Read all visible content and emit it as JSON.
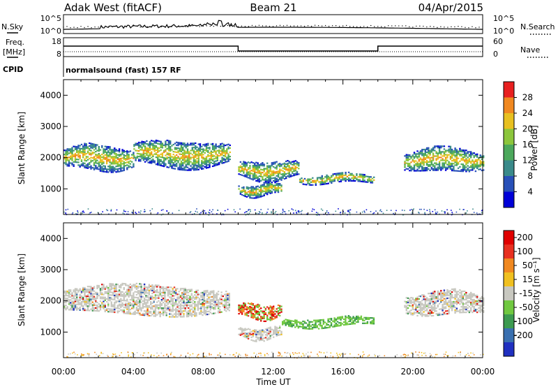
{
  "header": {
    "station": "Adak West (fitACF)",
    "beam": "Beam 21",
    "date": "04/Apr/2015"
  },
  "noise_panel": {
    "left_label": "N.Sky",
    "right_label": "N.Search",
    "left_ticks": [
      "10^5",
      "10^0"
    ],
    "right_ticks": [
      "10^5",
      "10^0"
    ]
  },
  "freq_panel": {
    "left_label_top": "Freq.",
    "left_label_bottom": "[MHz]",
    "right_label": "Nave",
    "left_ticks": [
      "18",
      "8"
    ],
    "right_ticks": [
      "60",
      "0"
    ],
    "cpid_label": "CPID",
    "cpid_text": "normalsound (fast) 157 RF"
  },
  "chart_data": [
    {
      "type": "heatmap",
      "name": "power",
      "ylabel": "Slant Range [km]",
      "xlabel": "Time UT",
      "ylim": [
        180,
        4500
      ],
      "yticks": [
        1000,
        2000,
        3000,
        4000
      ],
      "xticks": [
        "00:00",
        "04:00",
        "08:00",
        "12:00",
        "16:00",
        "20:00",
        "00:00"
      ],
      "colorbar_label": "Power [dB]",
      "colorbar_ticks": [
        "28",
        "24",
        "20",
        "16",
        "12",
        "8",
        "4"
      ],
      "colors": [
        "#0000d8",
        "#2850b8",
        "#3a8a8a",
        "#4ca85c",
        "#8cc63c",
        "#e8c020",
        "#f08820",
        "#e82020"
      ],
      "blobs": [
        {
          "t": [
            0.0,
            4.0
          ],
          "r": [
            1550,
            2400
          ]
        },
        {
          "t": [
            4.0,
            9.5
          ],
          "r": [
            1650,
            2550
          ]
        },
        {
          "t": [
            10.0,
            13.5
          ],
          "r": [
            1250,
            1900
          ]
        },
        {
          "t": [
            10.0,
            12.5
          ],
          "r": [
            750,
            1150
          ]
        },
        {
          "t": [
            13.5,
            17.8
          ],
          "r": [
            1150,
            1450
          ]
        },
        {
          "t": [
            19.5,
            24.0
          ],
          "r": [
            1500,
            2300
          ]
        }
      ]
    },
    {
      "type": "heatmap",
      "name": "velocity",
      "ylabel": "Slant Range [km]",
      "xlabel": "Time UT",
      "ylim": [
        180,
        4500
      ],
      "yticks": [
        1000,
        2000,
        3000,
        4000
      ],
      "xticks": [
        "00:00",
        "04:00",
        "08:00",
        "12:00",
        "16:00",
        "20:00",
        "00:00"
      ],
      "colorbar_label": "Velocity [m s⁻¹]",
      "colorbar_ticks": [
        "200",
        "100",
        "50",
        "15",
        "-15",
        "-50",
        "-100",
        "-200"
      ],
      "colors": [
        "#2030c0",
        "#3a70b0",
        "#3c9a50",
        "#70c840",
        "#c8c8c0",
        "#f0c020",
        "#f08820",
        "#e83020",
        "#e00000"
      ],
      "blobs": [
        {
          "t": [
            0.0,
            9.5
          ],
          "r": [
            1500,
            2500
          ]
        },
        {
          "t": [
            10.0,
            12.5
          ],
          "r": [
            1400,
            1900
          ]
        },
        {
          "t": [
            10.0,
            12.5
          ],
          "r": [
            750,
            1150
          ]
        },
        {
          "t": [
            12.5,
            17.8
          ],
          "r": [
            1150,
            1450
          ]
        },
        {
          "t": [
            19.5,
            24.0
          ],
          "r": [
            1500,
            2300
          ]
        }
      ]
    }
  ]
}
